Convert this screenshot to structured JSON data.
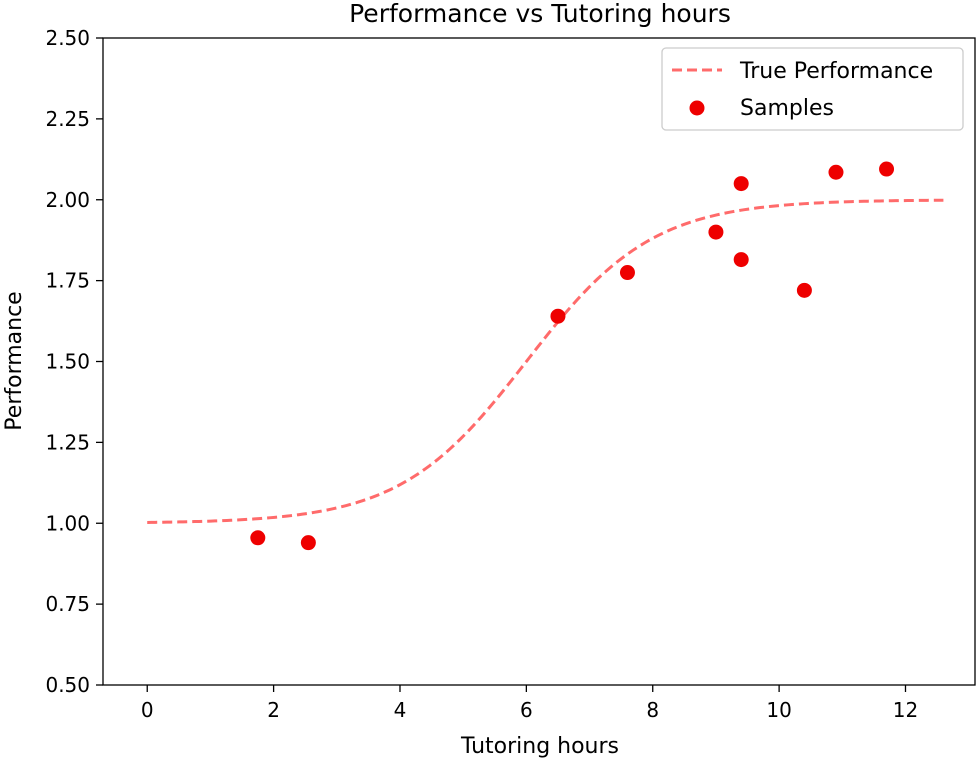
{
  "chart_data": {
    "type": "scatter",
    "title": "Performance vs Tutoring hours",
    "xlabel": "Tutoring hours",
    "ylabel": "Performance",
    "xlim": [
      -0.7,
      13.1
    ],
    "ylim": [
      0.5,
      2.5
    ],
    "xticks": [
      0,
      2,
      4,
      6,
      8,
      10,
      12
    ],
    "yticks": [
      0.5,
      0.75,
      1.0,
      1.25,
      1.5,
      1.75,
      2.0,
      2.25,
      2.5
    ],
    "xtick_labels": [
      "0",
      "2",
      "4",
      "6",
      "8",
      "10",
      "12"
    ],
    "ytick_labels": [
      "0.50",
      "0.75",
      "1.00",
      "1.25",
      "1.50",
      "1.75",
      "2.00",
      "2.25",
      "2.50"
    ],
    "grid": false,
    "legend_position": "top-right",
    "series": [
      {
        "name": "True Performance",
        "kind": "line",
        "style": "dashed",
        "color": "#ff6b6b",
        "function": "1 + 1/(1+exp(-(x-6)))",
        "x_range": [
          0,
          12.6
        ]
      },
      {
        "name": "Samples",
        "kind": "scatter",
        "color": "#ee0000",
        "x": [
          1.75,
          2.55,
          6.5,
          7.6,
          9.0,
          9.4,
          9.4,
          10.4,
          10.9,
          11.7
        ],
        "y": [
          0.955,
          0.94,
          1.64,
          1.775,
          1.9,
          2.05,
          1.815,
          1.72,
          2.085,
          2.095
        ]
      }
    ]
  }
}
